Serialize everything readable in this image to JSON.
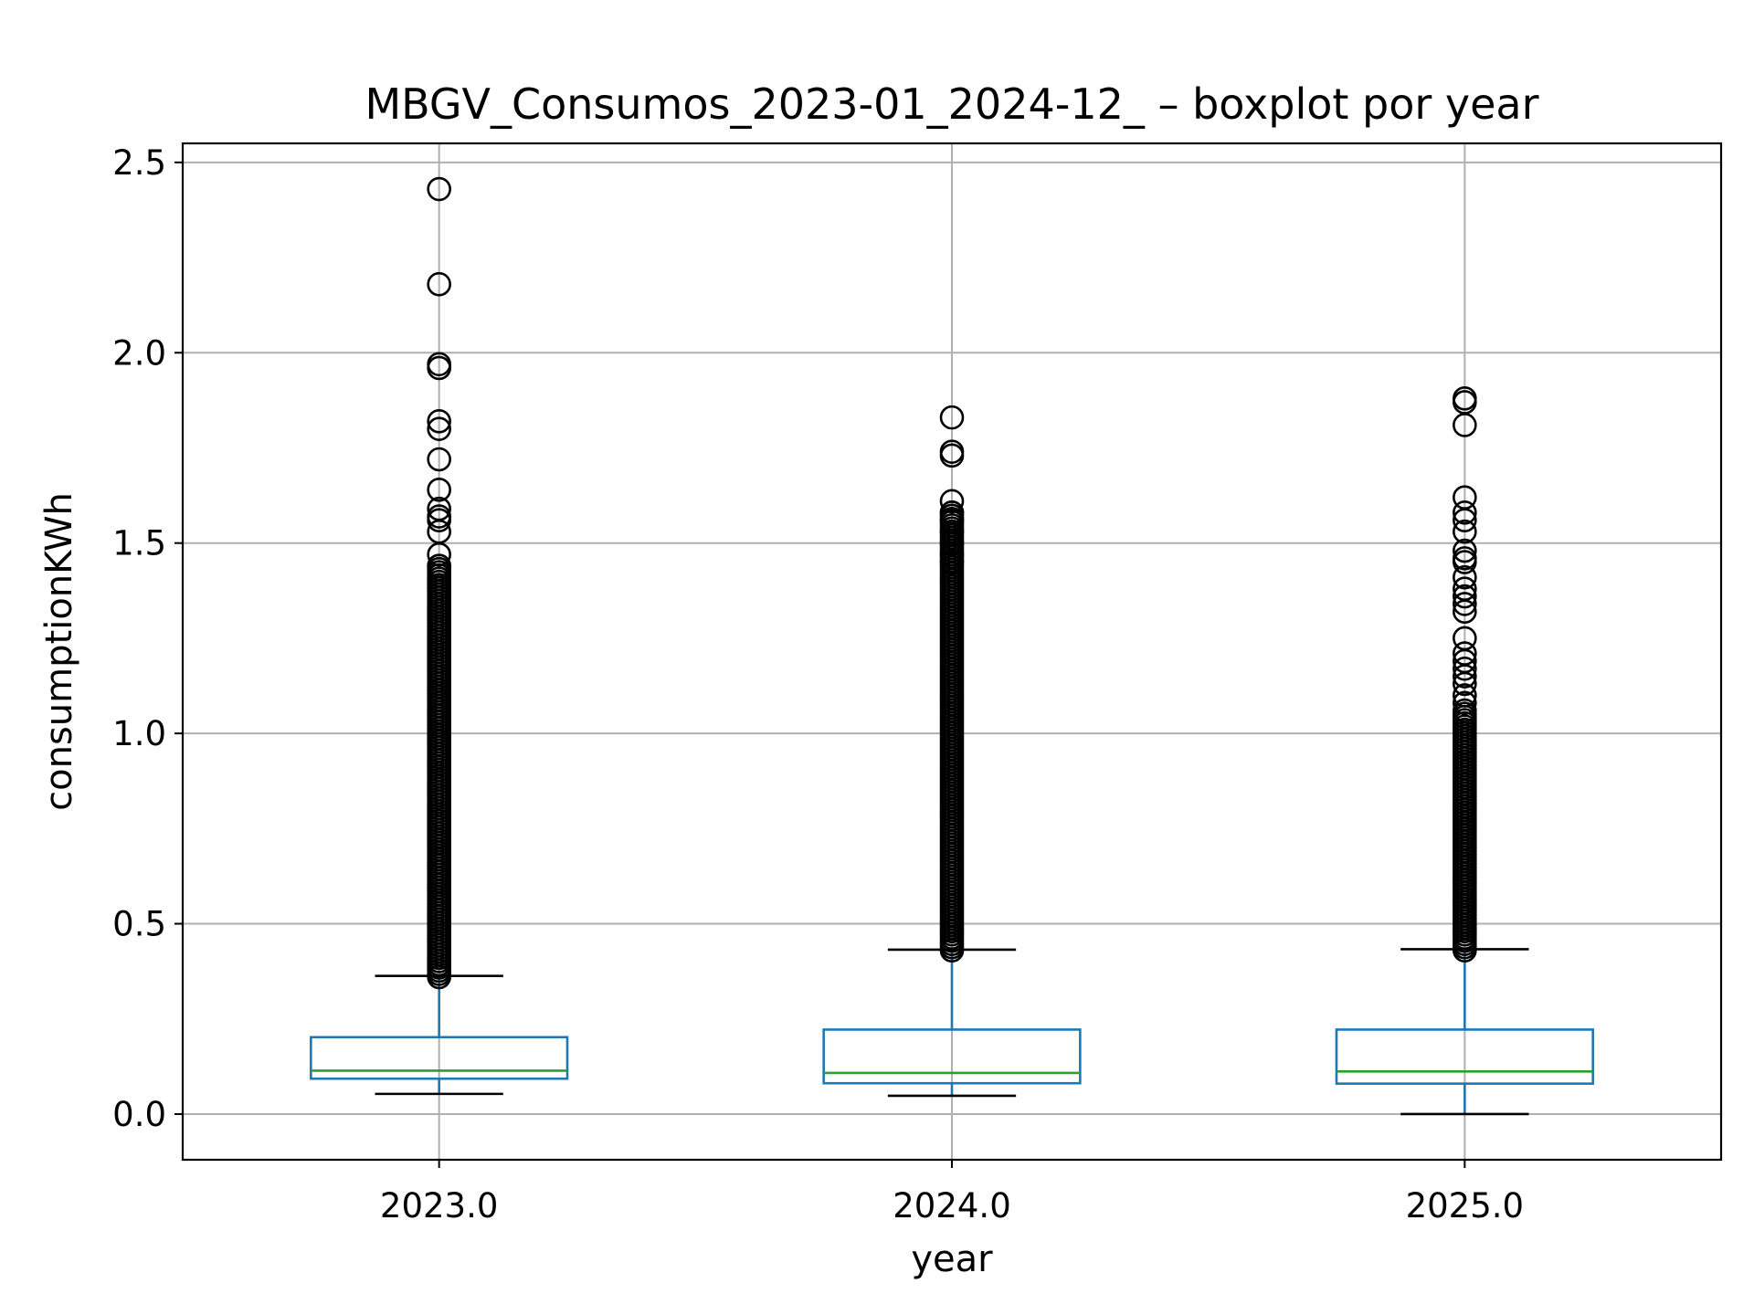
{
  "chart_data": {
    "type": "box",
    "title": "MBGV_Consumos_2023-01_2024-12_ – boxplot por year",
    "xlabel": "year",
    "ylabel": "consumptionKWh",
    "categories": [
      "2023.0",
      "2024.0",
      "2025.0"
    ],
    "ylim": [
      -0.12,
      2.55
    ],
    "yticks": [
      0.0,
      0.5,
      1.0,
      1.5,
      2.0,
      2.5
    ],
    "ytick_labels": [
      "0.0",
      "0.5",
      "1.0",
      "1.5",
      "2.0",
      "2.5"
    ],
    "grid": true,
    "colors": {
      "box": "#1f77b4",
      "median": "#2ca02c",
      "whisker_cap": "#000000",
      "flier": "#000000",
      "grid": "#b0b0b0"
    },
    "boxes": [
      {
        "category": "2023.0",
        "whisker_low": 0.053,
        "q1": 0.093,
        "median": 0.114,
        "q3": 0.202,
        "whisker_high": 0.363,
        "dense_outlier_range": [
          0.36,
          1.44
        ],
        "outliers": [
          2.43,
          2.18,
          1.97,
          1.96,
          1.82,
          1.8,
          1.72,
          1.64,
          1.59,
          1.57,
          1.56,
          1.53,
          1.47,
          1.44
        ]
      },
      {
        "category": "2024.0",
        "whisker_low": 0.048,
        "q1": 0.081,
        "median": 0.108,
        "q3": 0.222,
        "whisker_high": 0.432,
        "dense_outlier_range": [
          0.43,
          1.58
        ],
        "outliers": [
          1.83,
          1.74,
          1.73,
          1.61,
          1.58,
          1.56,
          1.53,
          1.5,
          1.47,
          1.45
        ]
      },
      {
        "category": "2025.0",
        "whisker_low": 0.0,
        "q1": 0.08,
        "median": 0.112,
        "q3": 0.222,
        "whisker_high": 0.433,
        "dense_outlier_range": [
          0.43,
          1.06
        ],
        "outliers": [
          1.88,
          1.87,
          1.81,
          1.62,
          1.58,
          1.56,
          1.53,
          1.48,
          1.46,
          1.45,
          1.41,
          1.38,
          1.36,
          1.34,
          1.32,
          1.25,
          1.21,
          1.19,
          1.17,
          1.15,
          1.13,
          1.1,
          1.08
        ]
      }
    ]
  }
}
